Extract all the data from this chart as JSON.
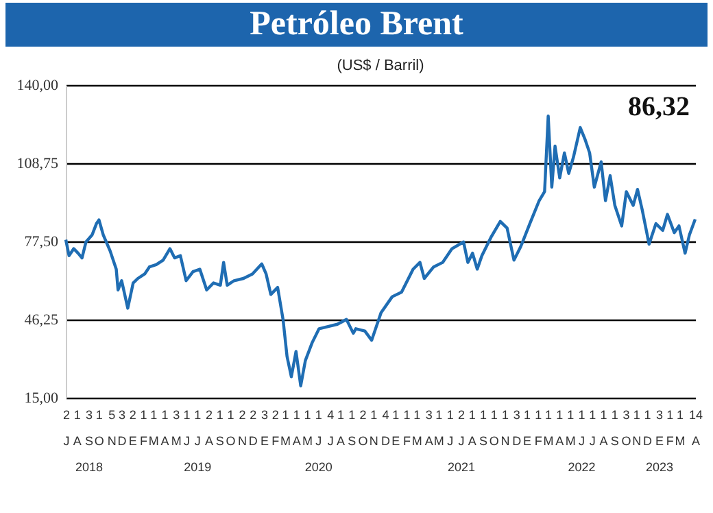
{
  "chart_data": {
    "type": "line",
    "title": "Petróleo Brent",
    "subtitle": "(US$ / Barril)",
    "annotations": [
      "86,32"
    ],
    "ylim": [
      15,
      140
    ],
    "yticks": [
      {
        "value": 15,
        "label": "15,00"
      },
      {
        "value": 46.25,
        "label": "46,25"
      },
      {
        "value": 77.5,
        "label": "77,50"
      },
      {
        "value": 108.75,
        "label": "108,75"
      },
      {
        "value": 140,
        "label": "140,00"
      }
    ],
    "xlim": [
      "2018-07-02",
      "2023-04-14"
    ],
    "xticks": [
      {
        "value": "2018-07-02",
        "label": "2\nJ"
      },
      {
        "value": "2018-08-01",
        "label": "1\nA"
      },
      {
        "value": "2018-09-03",
        "label": "3\nS\n2018"
      },
      {
        "value": "2018-10-01",
        "label": "1\nO"
      },
      {
        "value": "2018-11-05",
        "label": "5\nN"
      },
      {
        "value": "2018-12-03",
        "label": "3\nD"
      },
      {
        "value": "2019-01-02",
        "label": "2\nE"
      },
      {
        "value": "2019-02-01",
        "label": "1\nF"
      },
      {
        "value": "2019-03-01",
        "label": "1\nM"
      },
      {
        "value": "2019-04-01",
        "label": "1\nA"
      },
      {
        "value": "2019-05-03",
        "label": "3\nM"
      },
      {
        "value": "2019-06-01",
        "label": "1\nJ"
      },
      {
        "value": "2019-07-01",
        "label": "1\nJ\n2019"
      },
      {
        "value": "2019-08-02",
        "label": "2\nA"
      },
      {
        "value": "2019-09-01",
        "label": "1\nS"
      },
      {
        "value": "2019-10-01",
        "label": "1\nO"
      },
      {
        "value": "2019-11-02",
        "label": "2\nN"
      },
      {
        "value": "2019-12-02",
        "label": "2\nD"
      },
      {
        "value": "2020-01-03",
        "label": "3\nE"
      },
      {
        "value": "2020-02-02",
        "label": "2\nF"
      },
      {
        "value": "2020-03-01",
        "label": "1\nM"
      },
      {
        "value": "2020-04-01",
        "label": "1\nA"
      },
      {
        "value": "2020-05-01",
        "label": "1\nM"
      },
      {
        "value": "2020-06-01",
        "label": "1\nJ\n2020"
      },
      {
        "value": "2020-07-04",
        "label": "4\nJ"
      },
      {
        "value": "2020-08-01",
        "label": "1\nA"
      },
      {
        "value": "2020-09-01",
        "label": "1\nS"
      },
      {
        "value": "2020-10-02",
        "label": "2\nO"
      },
      {
        "value": "2020-11-01",
        "label": "1\nN"
      },
      {
        "value": "2020-12-04",
        "label": "4\nD"
      },
      {
        "value": "2021-01-01",
        "label": "1\nE"
      },
      {
        "value": "2021-02-01",
        "label": "1\nF"
      },
      {
        "value": "2021-03-01",
        "label": "1\nM"
      },
      {
        "value": "2021-04-03",
        "label": "3\nA"
      },
      {
        "value": "2021-05-01",
        "label": "1\nM"
      },
      {
        "value": "2021-06-01",
        "label": "1\nJ"
      },
      {
        "value": "2021-07-02",
        "label": "2\nJ\n2021"
      },
      {
        "value": "2021-08-01",
        "label": "1\nA"
      },
      {
        "value": "2021-09-01",
        "label": "1\nS"
      },
      {
        "value": "2021-10-01",
        "label": "1\nO"
      },
      {
        "value": "2021-11-01",
        "label": "1\nN"
      },
      {
        "value": "2021-12-03",
        "label": "3\nD"
      },
      {
        "value": "2022-01-01",
        "label": "1\nE"
      },
      {
        "value": "2022-02-01",
        "label": "1\nF"
      },
      {
        "value": "2022-03-01",
        "label": "1\nM"
      },
      {
        "value": "2022-04-01",
        "label": "1\nA"
      },
      {
        "value": "2022-05-01",
        "label": "1\nM"
      },
      {
        "value": "2022-06-01",
        "label": "1\nJ\n2022"
      },
      {
        "value": "2022-07-01",
        "label": "1\nJ"
      },
      {
        "value": "2022-08-01",
        "label": "1\nA"
      },
      {
        "value": "2022-09-01",
        "label": "1\nS"
      },
      {
        "value": "2022-10-03",
        "label": "3\nO"
      },
      {
        "value": "2022-11-01",
        "label": "1\nN"
      },
      {
        "value": "2022-12-01",
        "label": "1\nD"
      },
      {
        "value": "2023-01-03",
        "label": "3\nE\n2023"
      },
      {
        "value": "2023-02-01",
        "label": "1\nF"
      },
      {
        "value": "2023-03-01",
        "label": "1\nM"
      },
      {
        "value": "2023-04-14",
        "label": "14\nA"
      }
    ],
    "grid": "y",
    "series": [
      {
        "color": "#1f6db3",
        "x": [
          "2018-07-02",
          "2018-07-11",
          "2018-07-24",
          "2018-08-05",
          "2018-08-16",
          "2018-08-27",
          "2018-09-13",
          "2018-09-25",
          "2018-10-02",
          "2018-10-14",
          "2018-11-02",
          "2018-11-19",
          "2018-11-24",
          "2018-12-04",
          "2018-12-21",
          "2019-01-05",
          "2019-01-18",
          "2019-02-06",
          "2019-02-19",
          "2019-03-10",
          "2019-03-29",
          "2019-04-17",
          "2019-04-30",
          "2019-05-16",
          "2019-06-01",
          "2019-06-20",
          "2019-07-09",
          "2019-07-28",
          "2019-08-16",
          "2019-09-04",
          "2019-09-13",
          "2019-09-23",
          "2019-10-12",
          "2019-11-07",
          "2019-12-02",
          "2019-12-28",
          "2020-01-09",
          "2020-01-22",
          "2020-02-10",
          "2020-02-25",
          "2020-03-07",
          "2020-03-19",
          "2020-04-01",
          "2020-04-14",
          "2020-04-27",
          "2020-05-16",
          "2020-06-04",
          "2020-06-29",
          "2020-07-25",
          "2020-08-19",
          "2020-09-07",
          "2020-09-14",
          "2020-10-09",
          "2020-10-28",
          "2020-11-23",
          "2020-12-24",
          "2021-01-19",
          "2021-02-20",
          "2021-03-11",
          "2021-03-23",
          "2021-04-18",
          "2021-05-13",
          "2021-06-08",
          "2021-07-10",
          "2021-07-22",
          "2021-08-04",
          "2021-08-17",
          "2021-08-30",
          "2021-09-24",
          "2021-10-20",
          "2021-11-08",
          "2021-11-27",
          "2021-12-16",
          "2022-01-10",
          "2022-02-05",
          "2022-02-20",
          "2022-03-02",
          "2022-03-12",
          "2022-03-21",
          "2022-04-03",
          "2022-04-16",
          "2022-04-28",
          "2022-05-11",
          "2022-05-30",
          "2022-06-12",
          "2022-06-25",
          "2022-07-08",
          "2022-07-27",
          "2022-08-08",
          "2022-08-21",
          "2022-09-03",
          "2022-09-22",
          "2022-10-05",
          "2022-10-24",
          "2022-11-05",
          "2022-11-18",
          "2022-12-07",
          "2022-12-26",
          "2023-01-14",
          "2023-01-27",
          "2023-02-15",
          "2023-02-28",
          "2023-03-17",
          "2023-03-29",
          "2023-04-14"
        ],
        "values": [
          78.2,
          71.8,
          74.6,
          72.8,
          70.9,
          77.3,
          80.1,
          84.6,
          86.1,
          80.1,
          73.7,
          66.4,
          58.1,
          61.8,
          50.8,
          60.9,
          62.7,
          64.5,
          67.3,
          68.2,
          70.0,
          74.6,
          70.9,
          71.8,
          61.8,
          65.4,
          66.4,
          58.1,
          60.9,
          60.0,
          69.1,
          60.0,
          61.8,
          62.7,
          64.5,
          68.5,
          64.5,
          56.3,
          59.1,
          46.3,
          31.6,
          23.4,
          33.5,
          19.8,
          29.9,
          37.1,
          42.6,
          43.5,
          44.4,
          46.3,
          40.8,
          42.6,
          41.7,
          38.0,
          49.0,
          55.4,
          57.2,
          66.4,
          69.1,
          62.7,
          67.3,
          69.1,
          74.6,
          77.3,
          69.1,
          72.8,
          66.4,
          71.8,
          79.1,
          85.5,
          82.8,
          70.0,
          75.5,
          84.6,
          93.8,
          97.4,
          127.6,
          99.2,
          115.6,
          102.9,
          112.9,
          104.7,
          111.1,
          123.0,
          118.4,
          112.9,
          99.2,
          109.3,
          93.8,
          103.8,
          91.9,
          83.7,
          97.4,
          91.9,
          98.3,
          90.1,
          76.4,
          84.6,
          81.9,
          88.3,
          81.0,
          83.7,
          72.8,
          80.1,
          86.32
        ]
      }
    ]
  }
}
